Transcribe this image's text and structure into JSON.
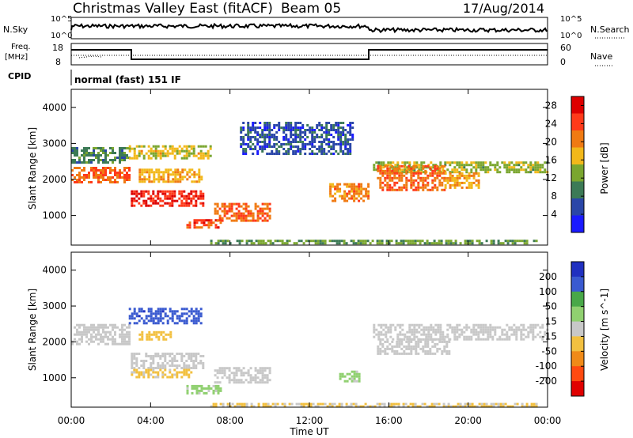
{
  "header": {
    "station": "Christmas Valley East (fitACF)",
    "beam": "Beam 05",
    "date": "17/Aug/2014"
  },
  "top_panels": {
    "nsky_label": "N.Sky",
    "nsky_ticks": [
      "10^5",
      "10^0"
    ],
    "nsearch_label": "N.Search",
    "nsearch_ticks": [
      "10^5",
      "10^0"
    ],
    "freq_label": "Freq.",
    "freq_unit": "[MHz]",
    "freq_ticks": [
      "18",
      "8"
    ],
    "nave_label": "Nave",
    "nave_ticks": [
      "60",
      "0"
    ],
    "cpid_label": "CPID",
    "cpid_value": "normal (fast) 151 IF"
  },
  "chart_data": [
    {
      "type": "heatmap",
      "panel": "power",
      "ylabel": "Slant Range [km]",
      "yticks": [
        "1000",
        "2000",
        "3000",
        "4000"
      ],
      "ylim": [
        180,
        4500
      ],
      "xlim": [
        0,
        24
      ],
      "colorbar_label": "Power [dB]",
      "colorbar_ticks": [
        "4",
        "8",
        "12",
        "16",
        "20",
        "24",
        "28"
      ],
      "colorbar_range": [
        0,
        30
      ],
      "colors": [
        "#1a1aff",
        "#2a46a8",
        "#3c7a56",
        "#7aa62f",
        "#f2b81a",
        "#f07a12",
        "#ff3a1a",
        "#dd0000"
      ],
      "regions": [
        {
          "t": [
            0.0,
            2.9
          ],
          "r": [
            2500,
            2900
          ],
          "value": 10
        },
        {
          "t": [
            0.0,
            2.9
          ],
          "r": [
            1950,
            2350
          ],
          "value": 22
        },
        {
          "t": [
            2.9,
            7.0
          ],
          "r": [
            2600,
            2950
          ],
          "value": 16
        },
        {
          "t": [
            3.4,
            6.6
          ],
          "r": [
            1950,
            2300
          ],
          "value": 18
        },
        {
          "t": [
            3.0,
            6.6
          ],
          "r": [
            1250,
            1700
          ],
          "value": 26
        },
        {
          "t": [
            5.8,
            7.5
          ],
          "r": [
            650,
            900
          ],
          "value": 24
        },
        {
          "t": [
            7.2,
            10.0
          ],
          "r": [
            850,
            1350
          ],
          "value": 22
        },
        {
          "t": [
            8.5,
            14.2
          ],
          "r": [
            2700,
            3600
          ],
          "value": 6
        },
        {
          "t": [
            13.0,
            15.0
          ],
          "r": [
            1400,
            1900
          ],
          "value": 20
        },
        {
          "t": [
            15.2,
            24.0
          ],
          "r": [
            2200,
            2500
          ],
          "value": 14
        },
        {
          "t": [
            15.4,
            18.8
          ],
          "r": [
            1700,
            2400
          ],
          "value": 22
        },
        {
          "t": [
            18.8,
            20.5
          ],
          "r": [
            1800,
            2200
          ],
          "value": 18
        },
        {
          "t": [
            7.0,
            23.5
          ],
          "r": [
            200,
            330
          ],
          "value": 12
        }
      ]
    },
    {
      "type": "heatmap",
      "panel": "velocity",
      "ylabel": "Slant Range [km]",
      "yticks": [
        "1000",
        "2000",
        "3000",
        "4000"
      ],
      "ylim": [
        180,
        4500
      ],
      "xlim": [
        0,
        24
      ],
      "xlabel": "Time UT",
      "xticks": [
        "00:00",
        "04:00",
        "08:00",
        "12:00",
        "16:00",
        "20:00",
        "00:00"
      ],
      "colorbar_label": "Velocity [m s^-1]",
      "colorbar_ticks": [
        "200",
        "100",
        "50",
        "15",
        "-15",
        "-50",
        "-100",
        "-200"
      ],
      "colorbar_range": [
        -250,
        250
      ],
      "colors": [
        "#2030c0",
        "#3a5ad0",
        "#48a848",
        "#90d070",
        "#c8c8c8",
        "#f2c040",
        "#f08a18",
        "#ff4a10",
        "#e00000"
      ],
      "regions": [
        {
          "t": [
            0.0,
            2.9
          ],
          "r": [
            1950,
            2500
          ],
          "value": 0
        },
        {
          "t": [
            2.9,
            6.6
          ],
          "r": [
            2550,
            2950
          ],
          "value": 180
        },
        {
          "t": [
            3.4,
            5.0
          ],
          "r": [
            2100,
            2300
          ],
          "value": -60
        },
        {
          "t": [
            3.0,
            6.6
          ],
          "r": [
            1300,
            1700
          ],
          "value": 0
        },
        {
          "t": [
            3.0,
            6.0
          ],
          "r": [
            1050,
            1250
          ],
          "value": -40
        },
        {
          "t": [
            5.8,
            7.5
          ],
          "r": [
            600,
            800
          ],
          "value": 40
        },
        {
          "t": [
            7.2,
            10.0
          ],
          "r": [
            850,
            1300
          ],
          "value": 0
        },
        {
          "t": [
            13.5,
            14.5
          ],
          "r": [
            900,
            1200
          ],
          "value": 40
        },
        {
          "t": [
            15.2,
            24.0
          ],
          "r": [
            2100,
            2500
          ],
          "value": 0
        },
        {
          "t": [
            15.4,
            19.0
          ],
          "r": [
            1700,
            2100
          ],
          "value": 0
        },
        {
          "t": [
            7.0,
            23.5
          ],
          "r": [
            200,
            300
          ],
          "value": -30
        }
      ]
    }
  ]
}
